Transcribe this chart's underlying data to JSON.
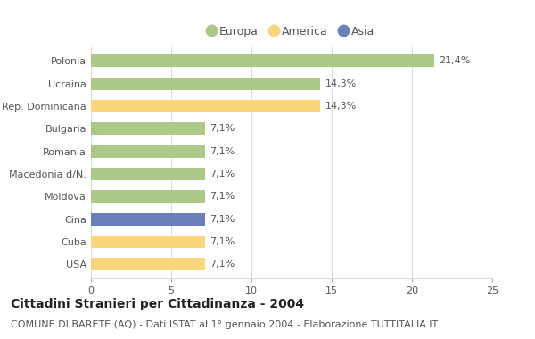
{
  "categories": [
    "Polonia",
    "Ucraina",
    "Rep. Dominicana",
    "Bulgaria",
    "Romania",
    "Macedonia d/N.",
    "Moldova",
    "Cina",
    "Cuba",
    "USA"
  ],
  "values": [
    21.4,
    14.3,
    14.3,
    7.1,
    7.1,
    7.1,
    7.1,
    7.1,
    7.1,
    7.1
  ],
  "labels": [
    "21,4%",
    "14,3%",
    "14,3%",
    "7,1%",
    "7,1%",
    "7,1%",
    "7,1%",
    "7,1%",
    "7,1%",
    "7,1%"
  ],
  "continents": [
    "Europa",
    "Europa",
    "America",
    "Europa",
    "Europa",
    "Europa",
    "Europa",
    "Asia",
    "America",
    "America"
  ],
  "colors": {
    "Europa": "#adc98a",
    "America": "#f9d67a",
    "Asia": "#6b80ba"
  },
  "legend_order": [
    "Europa",
    "America",
    "Asia"
  ],
  "xlim": [
    0,
    25
  ],
  "xticks": [
    0,
    5,
    10,
    15,
    20,
    25
  ],
  "title": "Cittadini Stranieri per Cittadinanza - 2004",
  "subtitle": "COMUNE DI BARETE (AQ) - Dati ISTAT al 1° gennaio 2004 - Elaborazione TUTTITALIA.IT",
  "title_fontsize": 10,
  "subtitle_fontsize": 8,
  "label_fontsize": 8,
  "tick_fontsize": 8,
  "legend_fontsize": 9,
  "bar_height": 0.55,
  "background_color": "#ffffff",
  "grid_color": "#dddddd"
}
